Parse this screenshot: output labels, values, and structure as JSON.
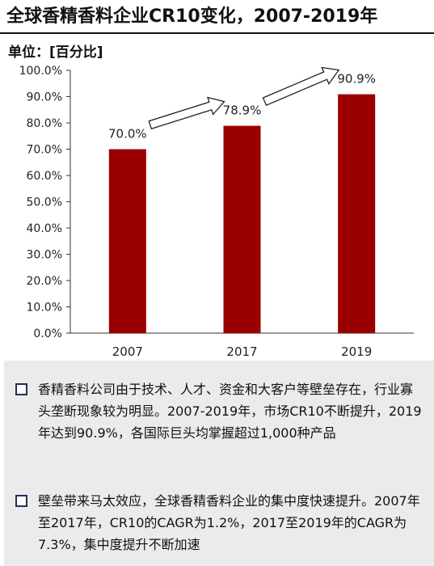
{
  "title": "全球香精香料企业CR10变化，2007-2019年",
  "unit_label": "单位：[百分比]",
  "chart_data": {
    "type": "bar",
    "categories": [
      "2007",
      "2017",
      "2019"
    ],
    "values": [
      70.0,
      78.9,
      90.9
    ],
    "data_labels": [
      "70.0%",
      "78.9%",
      "90.9%"
    ],
    "ylim": [
      0,
      100
    ],
    "yticks": [
      0,
      10,
      20,
      30,
      40,
      50,
      60,
      70,
      80,
      90,
      100
    ],
    "ytick_labels": [
      "0.0%",
      "10.0%",
      "20.0%",
      "30.0%",
      "40.0%",
      "50.0%",
      "60.0%",
      "70.0%",
      "80.0%",
      "90.0%",
      "100.0%"
    ],
    "grid": false,
    "bar_color": "#9b0000",
    "annotations": [
      "arrow from 2007 to 2017",
      "arrow from 2017 to 2019"
    ]
  },
  "notes": [
    "香精香料公司由于技术、人才、资金和大客户等壁垒存在，行业寡头垄断现象较为明显。2007-2019年，市场CR10不断提升，2019年达到90.9%，各国际巨头均掌握超过1,000种产品",
    "壁垒带来马太效应，全球香精香料企业的集中度快速提升。2007年至2017年，CR10的CAGR为1.2%，2017至2019年的CAGR为7.3%，集中度提升不断加速"
  ]
}
